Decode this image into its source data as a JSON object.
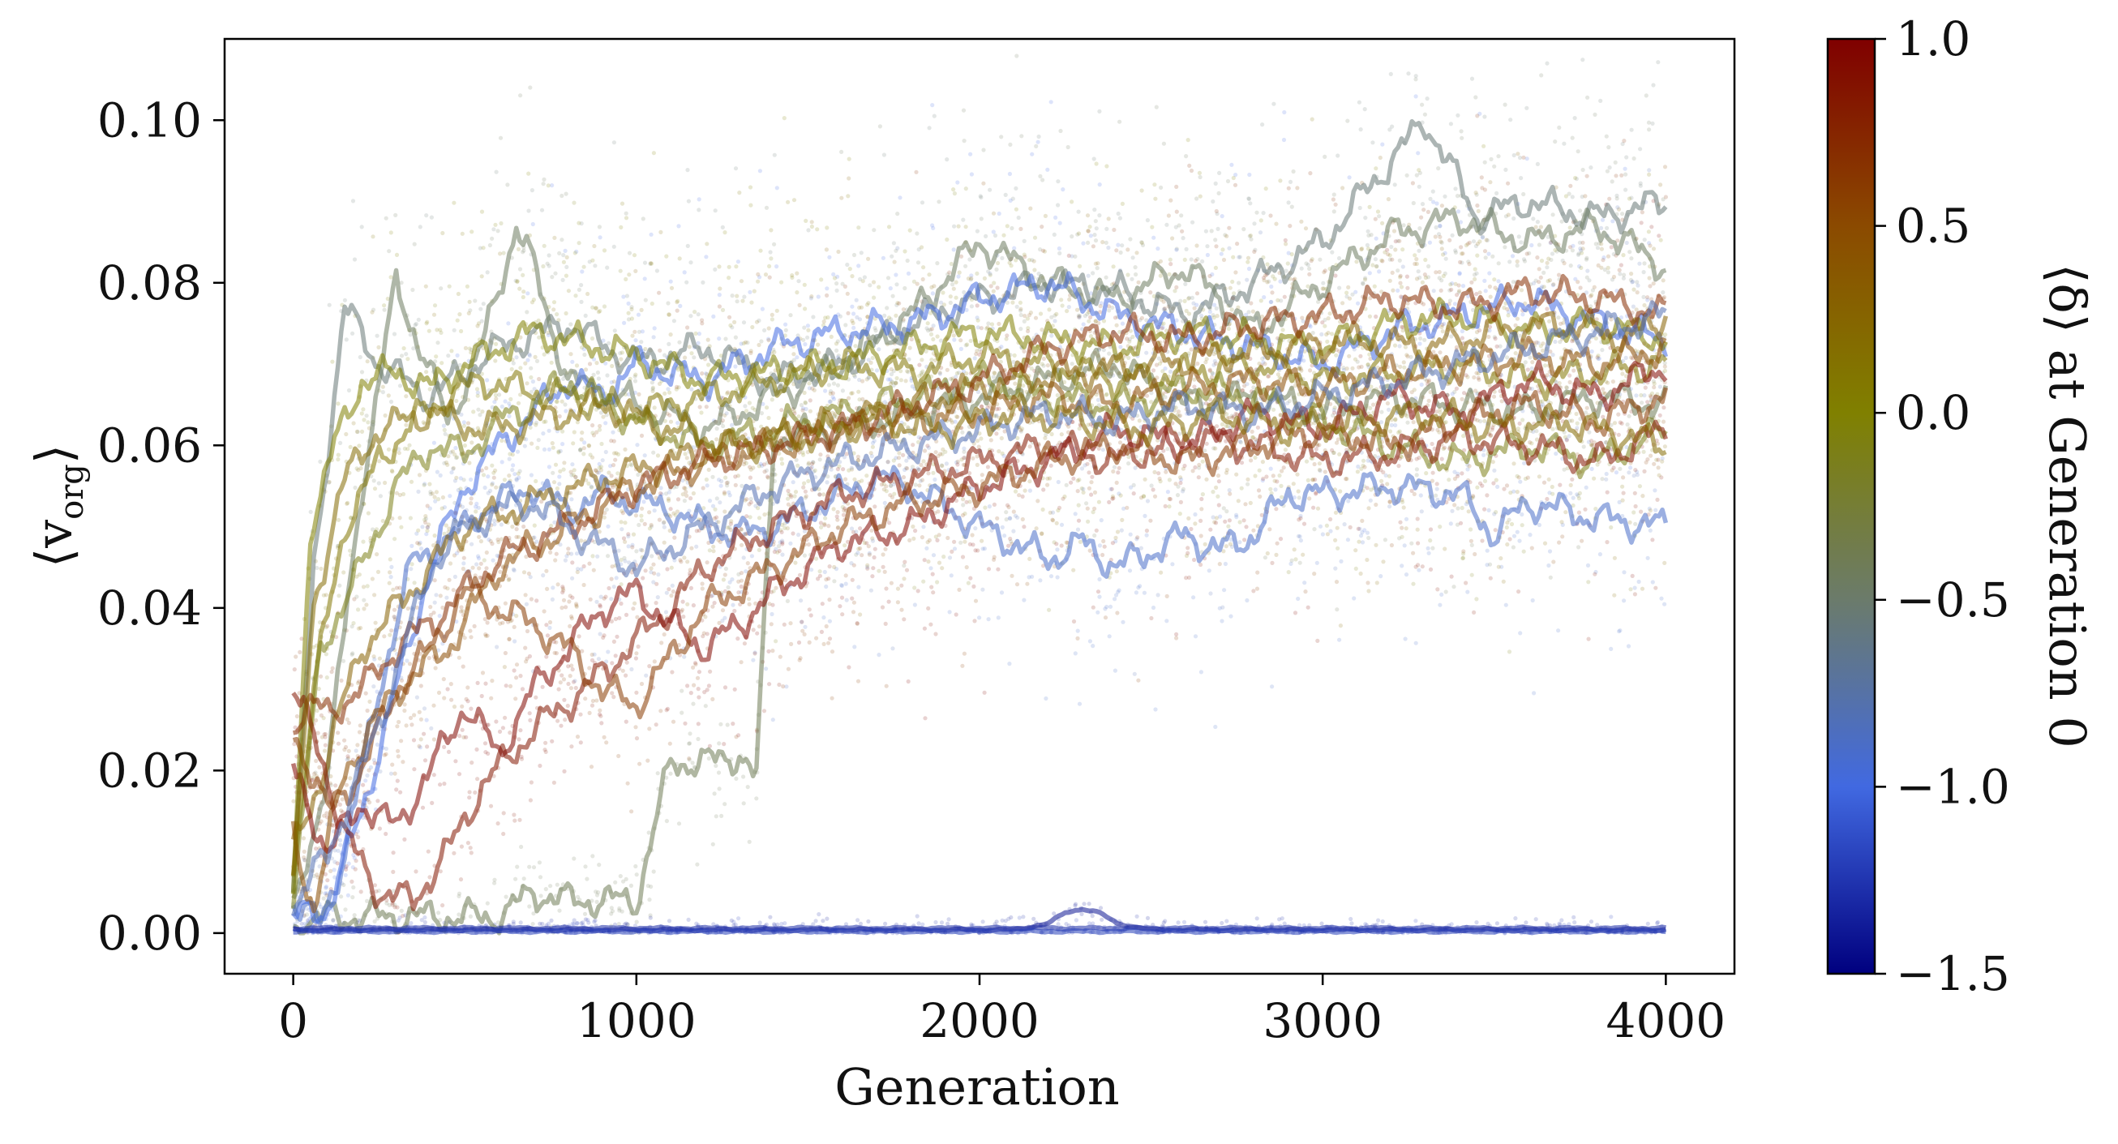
{
  "chart_data": {
    "type": "scatter",
    "xlabel": "Generation",
    "ylabel": "⟨v",
    "ylabel_sub": "org",
    "ylabel_close": "⟩",
    "xlim": [
      -200,
      4200
    ],
    "ylim": [
      -0.005,
      0.11
    ],
    "xticks": [
      0,
      1000,
      2000,
      3000,
      4000
    ],
    "xtick_labels": [
      "0",
      "1000",
      "2000",
      "3000",
      "4000"
    ],
    "yticks": [
      0.0,
      0.02,
      0.04,
      0.06,
      0.08,
      0.1
    ],
    "ytick_labels": [
      "0.00",
      "0.02",
      "0.04",
      "0.06",
      "0.08",
      "0.10"
    ],
    "grid": false,
    "legend": "none",
    "colorbar": {
      "label": "⟨δ⟩ at Generation 0",
      "range": [
        -1.5,
        1.0
      ],
      "ticks": [
        1.0,
        0.5,
        0.0,
        -0.5,
        -1.0,
        -1.5
      ],
      "tick_labels": [
        "1.0",
        "0.5",
        "0.0",
        "−0.5",
        "−1.0",
        "−1.5"
      ],
      "colors": {
        "-1.5": "#00007f",
        "-1.0": "#4169e1",
        "-0.5": "#6b7b6b",
        "0.0": "#808000",
        "0.5": "#8b4a00",
        "1.0": "#800000"
      }
    },
    "scatter_alpha": 0.18,
    "line_alpha": 0.55,
    "series": [
      {
        "delta": -0.55,
        "x": [
          0,
          60,
          150,
          250,
          400,
          600,
          800,
          1000,
          1200,
          1400,
          1600,
          1800,
          2000,
          2200,
          2400,
          2600,
          2800,
          3000,
          3200,
          3300,
          3450,
          3600,
          3800,
          4000
        ],
        "y": [
          0.005,
          0.045,
          0.077,
          0.07,
          0.066,
          0.072,
          0.075,
          0.07,
          0.072,
          0.068,
          0.07,
          0.075,
          0.078,
          0.08,
          0.079,
          0.076,
          0.08,
          0.085,
          0.095,
          0.1,
          0.088,
          0.09,
          0.088,
          0.09
        ]
      },
      {
        "delta": -0.45,
        "x": [
          0,
          100,
          200,
          300,
          450,
          550,
          650,
          700,
          800,
          1000,
          1200,
          1400,
          1600,
          1800,
          2000,
          2200,
          2400,
          2600,
          2800,
          3000,
          3200,
          3400,
          3600,
          3800,
          4000
        ],
        "y": [
          0.002,
          0.02,
          0.055,
          0.08,
          0.063,
          0.072,
          0.087,
          0.082,
          0.068,
          0.065,
          0.062,
          0.066,
          0.07,
          0.076,
          0.085,
          0.08,
          0.078,
          0.082,
          0.074,
          0.08,
          0.086,
          0.088,
          0.085,
          0.087,
          0.082
        ]
      },
      {
        "delta": -0.4,
        "x": [
          0,
          100,
          200,
          300,
          400,
          500,
          600,
          700,
          800,
          1000,
          1100,
          1200,
          1300,
          1350,
          1400,
          1600,
          1800,
          2000,
          2200,
          2400,
          2600,
          2800,
          3000,
          3200,
          3400,
          3600,
          3800,
          4000
        ],
        "y": [
          0.001,
          0.002,
          0.002,
          0.002,
          0.002,
          0.002,
          0.002,
          0.005,
          0.004,
          0.004,
          0.021,
          0.021,
          0.022,
          0.019,
          0.061,
          0.062,
          0.064,
          0.066,
          0.068,
          0.07,
          0.065,
          0.066,
          0.064,
          0.066,
          0.065,
          0.064,
          0.066,
          0.065
        ]
      },
      {
        "delta": -0.9,
        "x": [
          0,
          80,
          150,
          250,
          350,
          450,
          550,
          700,
          800,
          900,
          1000,
          1100,
          1200,
          1300,
          1400,
          1500,
          1600,
          1700,
          1800,
          2000,
          2100,
          2200,
          2300,
          2400,
          2500,
          2600,
          2700,
          2800,
          2900,
          3000,
          3200,
          3400,
          3500,
          3600,
          3800,
          4000
        ],
        "y": [
          0.004,
          0.001,
          0.01,
          0.03,
          0.046,
          0.048,
          0.052,
          0.055,
          0.052,
          0.054,
          0.053,
          0.052,
          0.05,
          0.049,
          0.05,
          0.052,
          0.054,
          0.056,
          0.055,
          0.05,
          0.048,
          0.046,
          0.048,
          0.045,
          0.047,
          0.049,
          0.047,
          0.049,
          0.054,
          0.054,
          0.055,
          0.054,
          0.049,
          0.053,
          0.051,
          0.05
        ]
      },
      {
        "delta": -1.0,
        "x": [
          0,
          100,
          200,
          300,
          400,
          500,
          600,
          700,
          800,
          900,
          1000,
          1200,
          1400,
          1600,
          1800,
          2000,
          2200,
          2400,
          2600,
          2800,
          3000,
          3200,
          3400,
          3600,
          3800,
          4000
        ],
        "y": [
          0.002,
          0.003,
          0.015,
          0.03,
          0.045,
          0.055,
          0.06,
          0.064,
          0.068,
          0.066,
          0.07,
          0.068,
          0.072,
          0.074,
          0.075,
          0.078,
          0.08,
          0.076,
          0.074,
          0.072,
          0.07,
          0.074,
          0.076,
          0.078,
          0.075,
          0.073
        ]
      },
      {
        "delta": 0.0,
        "x": [
          0,
          50,
          120,
          200,
          300,
          400,
          500,
          600,
          700,
          800,
          900,
          1000,
          1200,
          1400,
          1600,
          1800,
          2000,
          2200,
          2400,
          2600,
          2800,
          3000,
          3200,
          3400,
          3600,
          3800,
          4000
        ],
        "y": [
          0.005,
          0.05,
          0.06,
          0.068,
          0.069,
          0.067,
          0.07,
          0.072,
          0.074,
          0.073,
          0.072,
          0.071,
          0.068,
          0.069,
          0.07,
          0.072,
          0.074,
          0.073,
          0.072,
          0.074,
          0.073,
          0.072,
          0.075,
          0.076,
          0.074,
          0.075,
          0.073
        ]
      },
      {
        "delta": 0.1,
        "x": [
          0,
          60,
          150,
          250,
          350,
          450,
          550,
          650,
          800,
          1000,
          1200,
          1400,
          1600,
          1800,
          2000,
          2200,
          2400,
          2600,
          2800,
          3000,
          3200,
          3400,
          3600,
          3800,
          4000
        ],
        "y": [
          0.008,
          0.03,
          0.05,
          0.058,
          0.063,
          0.066,
          0.068,
          0.067,
          0.066,
          0.064,
          0.066,
          0.068,
          0.07,
          0.069,
          0.071,
          0.07,
          0.068,
          0.069,
          0.07,
          0.068,
          0.069,
          0.07,
          0.068,
          0.069,
          0.07
        ]
      },
      {
        "delta": -0.1,
        "x": [
          0,
          80,
          200,
          300,
          400,
          500,
          600,
          700,
          800,
          1000,
          1200,
          1400,
          1600,
          1800,
          2000,
          2200,
          2400,
          2600,
          2800,
          3000,
          3200,
          3400,
          3600,
          3800,
          4000
        ],
        "y": [
          0.004,
          0.035,
          0.045,
          0.055,
          0.06,
          0.059,
          0.063,
          0.065,
          0.068,
          0.063,
          0.06,
          0.062,
          0.064,
          0.066,
          0.068,
          0.066,
          0.065,
          0.067,
          0.066,
          0.063,
          0.06,
          0.058,
          0.06,
          0.058,
          0.062
        ]
      },
      {
        "delta": 0.3,
        "x": [
          0,
          50,
          120,
          200,
          300,
          400,
          500,
          700,
          900,
          1100,
          1300,
          1500,
          1700,
          1900,
          2100,
          2300,
          2500,
          2700,
          2900,
          3100,
          3300,
          3500,
          3700,
          3900,
          4000
        ],
        "y": [
          0.01,
          0.015,
          0.025,
          0.035,
          0.04,
          0.045,
          0.05,
          0.053,
          0.056,
          0.058,
          0.06,
          0.062,
          0.064,
          0.066,
          0.068,
          0.069,
          0.07,
          0.071,
          0.072,
          0.073,
          0.072,
          0.074,
          0.075,
          0.073,
          0.076
        ]
      },
      {
        "delta": 0.5,
        "x": [
          0,
          60,
          150,
          300,
          450,
          600,
          800,
          1000,
          1200,
          1400,
          1600,
          1800,
          2000,
          2200,
          2400,
          2600,
          2800,
          3000,
          3200,
          3400,
          3600,
          3800,
          4000
        ],
        "y": [
          0.012,
          0.003,
          0.02,
          0.03,
          0.035,
          0.045,
          0.05,
          0.055,
          0.058,
          0.06,
          0.062,
          0.063,
          0.064,
          0.066,
          0.065,
          0.067,
          0.068,
          0.067,
          0.069,
          0.07,
          0.071,
          0.07,
          0.072
        ]
      },
      {
        "delta": 0.7,
        "x": [
          0,
          50,
          100,
          200,
          300,
          450,
          600,
          800,
          1000,
          1200,
          1400,
          1600,
          1800,
          2000,
          2200,
          2400,
          2600,
          2800,
          3000,
          3200,
          3400,
          3600,
          3800,
          4000
        ],
        "y": [
          0.026,
          0.028,
          0.027,
          0.03,
          0.035,
          0.04,
          0.046,
          0.05,
          0.055,
          0.058,
          0.06,
          0.062,
          0.065,
          0.068,
          0.072,
          0.074,
          0.073,
          0.075,
          0.076,
          0.078,
          0.077,
          0.079,
          0.078,
          0.076
        ]
      },
      {
        "delta": 0.85,
        "x": [
          0,
          80,
          150,
          250,
          350,
          450,
          550,
          700,
          850,
          1000,
          1100,
          1200,
          1400,
          1600,
          1800,
          2000,
          2200,
          2400,
          2600,
          2800,
          3000,
          3200,
          3400,
          3600,
          3800,
          4000
        ],
        "y": [
          0.03,
          0.022,
          0.012,
          0.005,
          0.004,
          0.01,
          0.018,
          0.025,
          0.03,
          0.036,
          0.04,
          0.045,
          0.05,
          0.054,
          0.056,
          0.058,
          0.06,
          0.058,
          0.061,
          0.06,
          0.058,
          0.059,
          0.061,
          0.06,
          0.058,
          0.062
        ]
      },
      {
        "delta": 0.95,
        "x": [
          0,
          100,
          200,
          300,
          400,
          500,
          600,
          700,
          800,
          900,
          1000,
          1100,
          1200,
          1300,
          1400,
          1500,
          1600,
          1800,
          2000,
          2200,
          2400,
          2600,
          2800,
          3000,
          3200,
          3400,
          3600,
          3800,
          4000
        ],
        "y": [
          0.02,
          0.01,
          0.016,
          0.013,
          0.02,
          0.028,
          0.022,
          0.03,
          0.035,
          0.04,
          0.042,
          0.038,
          0.035,
          0.038,
          0.042,
          0.045,
          0.048,
          0.05,
          0.055,
          0.058,
          0.062,
          0.06,
          0.064,
          0.062,
          0.066,
          0.064,
          0.068,
          0.066,
          0.07
        ]
      },
      {
        "delta": 0.6,
        "x": [
          0,
          100,
          200,
          300,
          400,
          500,
          600,
          700,
          800,
          900,
          1000,
          1200,
          1400,
          1600,
          1800,
          2000,
          2200,
          2400,
          2600,
          2800,
          3000,
          3200,
          3400,
          3600,
          3800,
          4000
        ],
        "y": [
          0.025,
          0.015,
          0.02,
          0.03,
          0.035,
          0.042,
          0.04,
          0.038,
          0.035,
          0.03,
          0.028,
          0.04,
          0.045,
          0.05,
          0.053,
          0.055,
          0.058,
          0.06,
          0.058,
          0.06,
          0.062,
          0.06,
          0.063,
          0.065,
          0.063,
          0.066
        ]
      },
      {
        "delta": -0.8,
        "x": [
          0,
          100,
          200,
          300,
          400,
          500,
          600,
          700,
          800,
          1000,
          1200,
          1400,
          1600,
          1800,
          2000,
          2200,
          2400,
          2600,
          2800,
          3000,
          3200,
          3400,
          3600,
          3800,
          4000
        ],
        "y": [
          0.003,
          0.01,
          0.02,
          0.032,
          0.045,
          0.05,
          0.052,
          0.053,
          0.05,
          0.045,
          0.05,
          0.055,
          0.058,
          0.06,
          0.062,
          0.064,
          0.063,
          0.065,
          0.064,
          0.066,
          0.068,
          0.07,
          0.072,
          0.074,
          0.076
        ]
      },
      {
        "delta": 0.2,
        "x": [
          0,
          60,
          140,
          250,
          400,
          550,
          700,
          900,
          1100,
          1300,
          1500,
          1700,
          1900,
          2100,
          2300,
          2500,
          2700,
          2900,
          3100,
          3300,
          3500,
          3700,
          3900,
          4000
        ],
        "y": [
          0.006,
          0.04,
          0.055,
          0.062,
          0.064,
          0.062,
          0.063,
          0.065,
          0.062,
          0.06,
          0.061,
          0.063,
          0.062,
          0.064,
          0.063,
          0.062,
          0.064,
          0.062,
          0.063,
          0.064,
          0.062,
          0.063,
          0.061,
          0.06
        ]
      },
      {
        "delta": -1.4,
        "x": [
          0,
          2100,
          2200,
          2250,
          2300,
          2350,
          2400,
          2500,
          4000
        ],
        "y": [
          0.0004,
          0.0004,
          0.0012,
          0.0025,
          0.003,
          0.0025,
          0.0012,
          0.0004,
          0.0004
        ]
      },
      {
        "delta": -1.3,
        "x": [
          0,
          4000
        ],
        "y": [
          0.0006,
          0.0006
        ]
      },
      {
        "delta": -1.2,
        "x": [
          0,
          4000
        ],
        "y": [
          0.0002,
          0.0002
        ]
      }
    ]
  }
}
